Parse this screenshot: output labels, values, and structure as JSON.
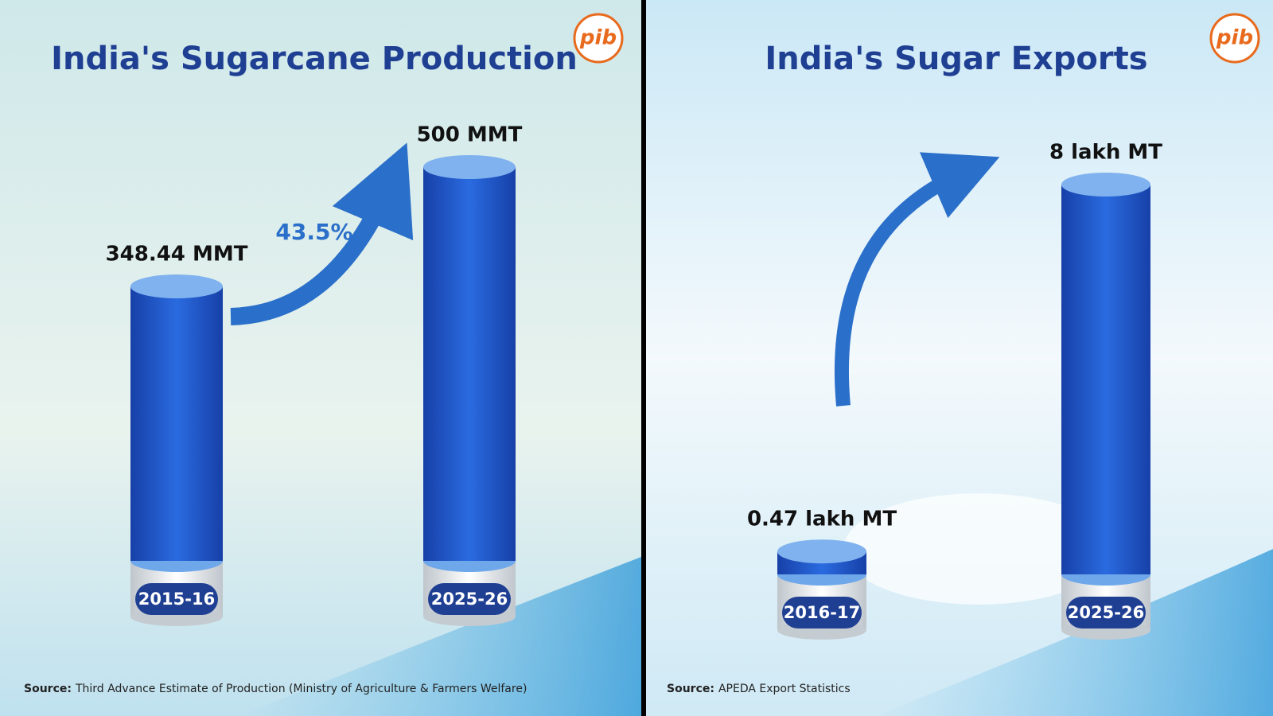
{
  "chart_data": [
    {
      "type": "bar",
      "title": "India's Sugarcane Production",
      "logo": "pib",
      "categories": [
        "2015-16",
        "2025-26"
      ],
      "values": [
        348.44,
        500
      ],
      "value_labels": [
        "348.44 MMT",
        "500 MMT"
      ],
      "color": "#1f56c8",
      "annotation": "43.5%",
      "source_label": "Source:",
      "source": "Third Advance Estimate of Production (Ministry of Agriculture & Farmers Welfare)"
    },
    {
      "type": "bar",
      "title": "India's Sugar Exports",
      "logo": "pib",
      "categories": [
        "2016-17",
        "2025-26"
      ],
      "values": [
        0.47,
        8
      ],
      "value_labels": [
        "0.47 lakh MT",
        "8 lakh MT"
      ],
      "color": "#1f56c8",
      "source_label": "Source:",
      "source": "APEDA Export Statistics"
    }
  ]
}
